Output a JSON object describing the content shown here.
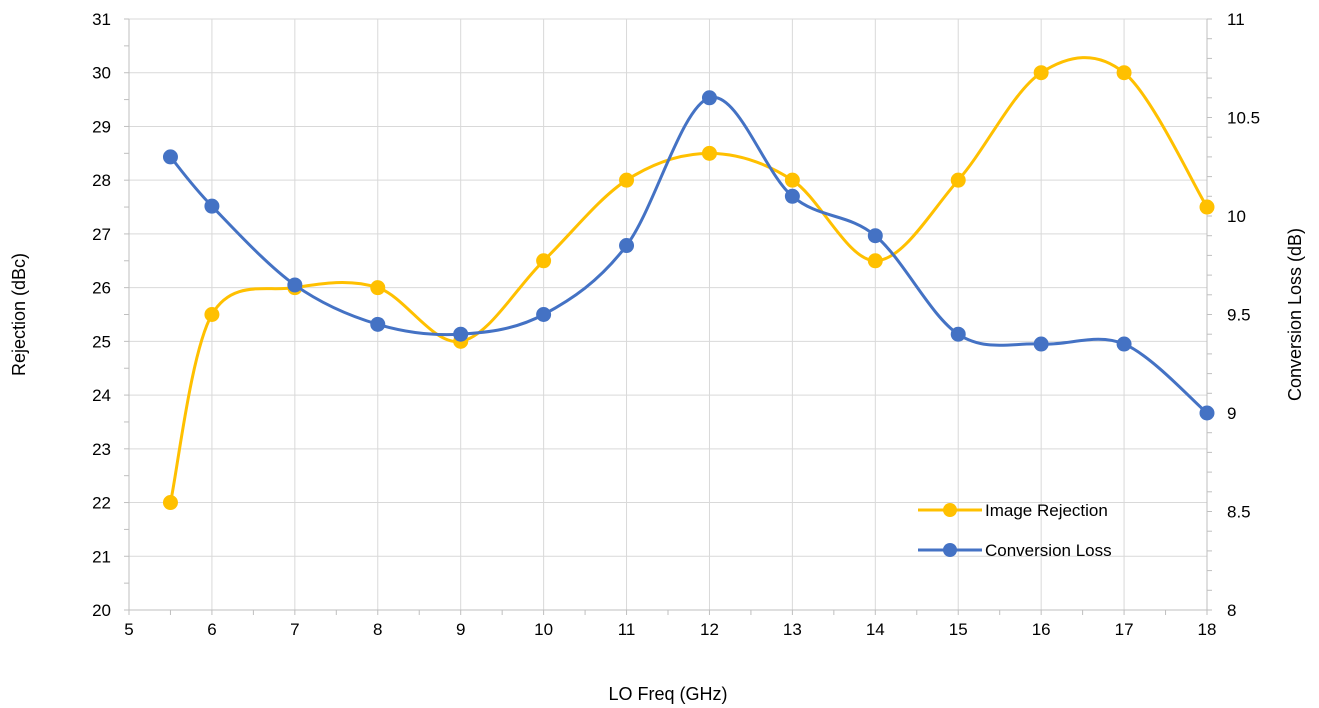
{
  "chart_data": {
    "type": "line",
    "title": "",
    "xlabel": "LO Freq (GHz)",
    "ylabel": "Rejection (dBc)",
    "y2label": "Conversion Loss (dB)",
    "xlim": [
      5,
      18
    ],
    "ylim": [
      20,
      31
    ],
    "y2lim": [
      8,
      11
    ],
    "x_ticks": [
      5,
      6,
      7,
      8,
      9,
      10,
      11,
      12,
      13,
      14,
      15,
      16,
      17,
      18
    ],
    "y_ticks": [
      20,
      21,
      22,
      23,
      24,
      25,
      26,
      27,
      28,
      29,
      30,
      31
    ],
    "y2_ticks": [
      "8",
      "8.5",
      "9",
      "9.5",
      "10",
      "10.5",
      "11"
    ],
    "grid": true,
    "smooth": true,
    "legend_position": "bottom-right inside plot",
    "series": [
      {
        "name": "Image Rejection",
        "axis": "left",
        "color": "#FFC000",
        "x": [
          5.5,
          6,
          7,
          8,
          9,
          10,
          11,
          12,
          13,
          14,
          15,
          16,
          17,
          18
        ],
        "values": [
          22,
          25.5,
          26,
          26,
          25,
          26.5,
          28,
          28.5,
          28,
          26.5,
          28,
          30,
          30,
          27.5
        ]
      },
      {
        "name": "Conversion Loss",
        "axis": "right",
        "color": "#4472C4",
        "x": [
          5.5,
          6,
          7,
          8,
          9,
          10,
          11,
          12,
          13,
          14,
          15,
          16,
          17,
          18
        ],
        "values": [
          10.3,
          10.05,
          9.65,
          9.45,
          9.4,
          9.5,
          9.85,
          10.6,
          10.1,
          9.9,
          9.4,
          9.35,
          9.35,
          9.0
        ]
      }
    ]
  }
}
